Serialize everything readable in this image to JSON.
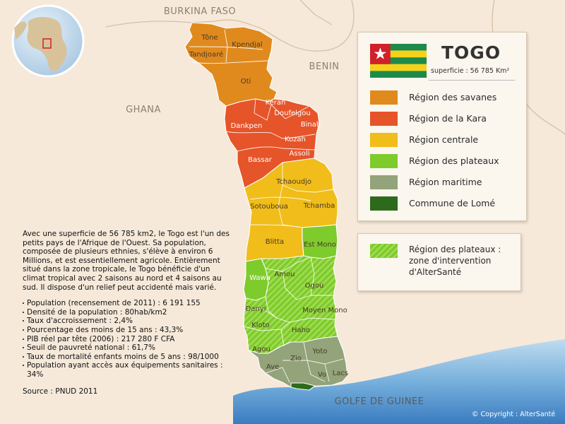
{
  "map": {
    "country_name": "TOGO",
    "area_label": "superficie : 56 785 Km²",
    "neighbors": [
      "BURKINA FASO",
      "BENIN",
      "GHANA"
    ],
    "sea_label": "GOLFE DE GUINEE"
  },
  "prefectures": [
    "Tône",
    "Kpendjal",
    "Tandjoaré",
    "Oti",
    "Kéran",
    "Doufelgou",
    "Binah",
    "Dankpen",
    "Kozah",
    "Bassar",
    "Assoli",
    "Tchaoudjo",
    "Sotouboua",
    "Tchamba",
    "Blitta",
    "Est Mono",
    "Wawa",
    "Amou",
    "Ogou",
    "Danyi",
    "Moyen Mono",
    "Kloto",
    "Haho",
    "Agou",
    "Yoto",
    "Zio",
    "Ave",
    "Vo",
    "Lacs"
  ],
  "legend": [
    {
      "label": "Région des savanes",
      "color": "#e08a1e"
    },
    {
      "label": "Région de la Kara",
      "color": "#e6542a"
    },
    {
      "label": "Région centrale",
      "color": "#f0bd1a"
    },
    {
      "label": "Région des plateaux",
      "color": "#7ecb2c"
    },
    {
      "label": "Région maritime",
      "color": "#93a37a"
    },
    {
      "label": "Commune de Lomé",
      "color": "#2d6a1c"
    }
  ],
  "zone_legend": {
    "label": "Région des plateaux : zone d'intervention d'AlterSanté",
    "color": "#7ecb2c"
  },
  "info": {
    "description": "Avec une superficie de 56 785 km2, le Togo est l'un des petits pays de l'Afrique de l'Ouest. Sa population, composée de plusieurs ethnies, s'élève à environ 6 Millions, et est essentiellement agricole. Entièrement situé dans la zone tropicale, le Togo bénéficie d'un climat tropical avec 2 saisons au nord et 4 saisons au sud. Il dispose d'un relief peut accidenté mais varié.",
    "stats": [
      "Population (recensement de 2011) : 6 191 155",
      "Densité de la population : 80hab/km2",
      "Taux d'accroissement : 2,4%",
      "Pourcentage des moins de 15 ans : 43,3%",
      "PIB réel par tête (2006) : 217 280 F CFA",
      "Seuil de pauvreté national : 61,7%",
      "Taux de mortalité enfants moins de 5 ans : 98/1000",
      "Population ayant accès aux équipements sanitaires : 34%"
    ],
    "source": "Source : PNUD 2011"
  },
  "copyright": "© Copyright : AlterSanté",
  "flag_colors": {
    "green": "#1e8a4a",
    "yellow": "#f5d21a",
    "red": "#d0202a"
  }
}
